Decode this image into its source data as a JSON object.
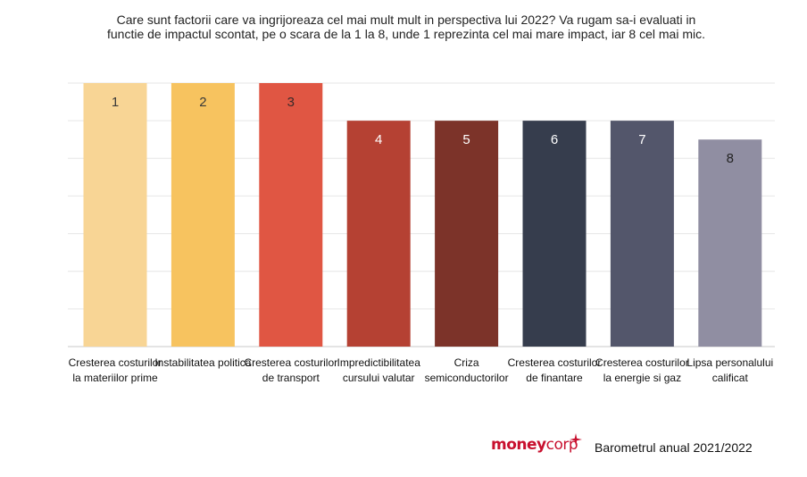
{
  "chart_data": {
    "type": "bar",
    "title": "Care sunt factorii care va ingrijoreaza cel mai mult mult in perspectiva lui 2022? Va rugam sa-i evaluati in functie de impactul scontat, pe o scara de la 1 la 8, unde 1 reprezinta cel mai mare impact, iar 8 cel mai mic.",
    "categories": [
      "Cresterea costurilor la materiilor prime",
      "Instabilitatea politica",
      "Cresterea costurilor de transport",
      "Impredictibilitatea cursului valutar",
      "Criza semiconductorilor",
      "Cresterea costurilor de finantare",
      "Cresterea costurilor la energie si gaz",
      "Lipsa personalului calificat"
    ],
    "values": [
      7,
      7,
      7,
      6,
      6,
      6,
      6,
      5.5
    ],
    "data_labels": [
      "1",
      "2",
      "3",
      "4",
      "5",
      "6",
      "7",
      "8"
    ],
    "colors": [
      "#f8d595",
      "#f7c35f",
      "#e05643",
      "#b54133",
      "#7c3329",
      "#363d4d",
      "#53566b",
      "#908ea2"
    ],
    "ylim": [
      0,
      7
    ],
    "grid": true,
    "legend": "none"
  },
  "footer": {
    "brand_money": "money",
    "brand_corp": "corp",
    "caption": "Barometrul anual 2021/2022"
  }
}
